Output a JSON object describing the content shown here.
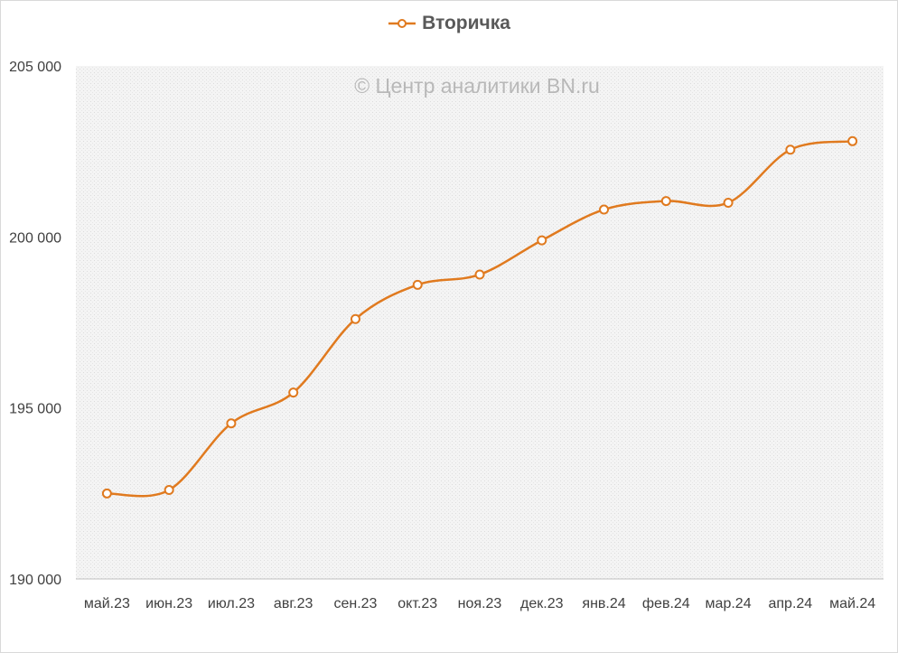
{
  "legend": {
    "series_name": "Вторичка"
  },
  "watermark": "© Центр аналитики BN.ru",
  "colors": {
    "series": "#E07A1F",
    "plot_bg": "#f2f2f2",
    "axis_text": "#404040"
  },
  "chart_data": {
    "type": "line",
    "smooth": true,
    "markers": "hollow-circle",
    "categories": [
      "май.23",
      "июн.23",
      "июл.23",
      "авг.23",
      "сен.23",
      "окт.23",
      "ноя.23",
      "дек.23",
      "янв.24",
      "фев.24",
      "мар.24",
      "апр.24",
      "май.24"
    ],
    "series": [
      {
        "name": "Вторичка",
        "values": [
          192500,
          192600,
          194550,
          195450,
          197600,
          198600,
          198900,
          199900,
          200800,
          201050,
          201000,
          202550,
          202800
        ]
      }
    ],
    "ylim": [
      190000,
      205000
    ],
    "yticks": [
      190000,
      195000,
      200000,
      205000
    ],
    "ytick_labels": [
      "190 000",
      "195 000",
      "200 000",
      "205 000"
    ],
    "grid": false,
    "legend_position": "top"
  }
}
